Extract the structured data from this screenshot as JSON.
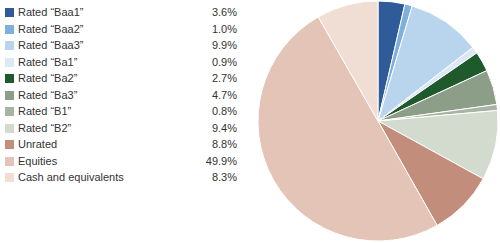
{
  "chart_data": {
    "type": "pie",
    "categories": [
      "Rated “Baa1”",
      "Rated “Baa2”",
      "Rated “Baa3”",
      "Rated “Ba1”",
      "Rated “Ba2”",
      "Rated “Ba3”",
      "Rated “B1”",
      "Rated “B2”",
      "Unrated",
      "Equities",
      "Cash and equivalents"
    ],
    "values": [
      3.6,
      1.0,
      9.9,
      0.9,
      2.7,
      4.7,
      0.8,
      9.4,
      8.8,
      49.9,
      8.3
    ],
    "value_labels": [
      "3.6%",
      "1.0%",
      "9.9%",
      "0.9%",
      "2.7%",
      "4.7%",
      "0.8%",
      "9.4%",
      "8.8%",
      "49.9%",
      "8.3%"
    ],
    "colors": [
      "#2f5b98",
      "#7eb0dc",
      "#b9d4ed",
      "#dce8f5",
      "#1e5a2c",
      "#8c9d88",
      "#a8b4a3",
      "#d2dbce",
      "#c38d7c",
      "#e3c4b6",
      "#f0ddd3"
    ],
    "legend": "left"
  }
}
